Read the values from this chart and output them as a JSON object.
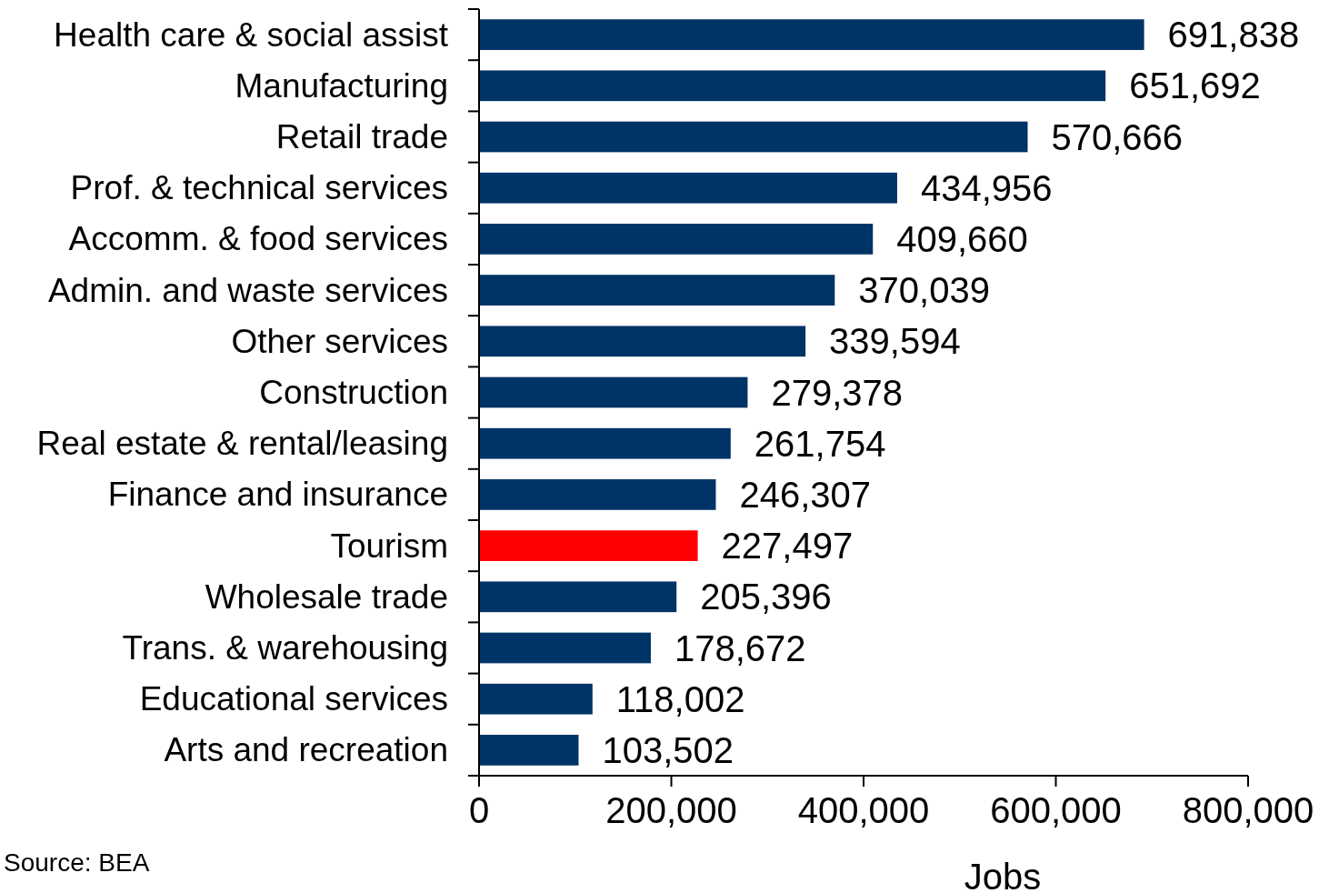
{
  "chart_data": {
    "type": "bar",
    "orientation": "horizontal",
    "categories": [
      "Health care & social assist",
      "Manufacturing",
      "Retail trade",
      "Prof. & technical services",
      "Accomm. & food services",
      "Admin. and waste services",
      "Other services",
      "Construction",
      "Real estate & rental/leasing",
      "Finance and insurance",
      "Tourism",
      "Wholesale trade",
      "Trans. & warehousing",
      "Educational services",
      "Arts and recreation"
    ],
    "values": [
      691838,
      651692,
      570666,
      434956,
      409660,
      370039,
      339594,
      279378,
      261754,
      246307,
      227497,
      205396,
      178672,
      118002,
      103502
    ],
    "colors": [
      "#003366",
      "#003366",
      "#003366",
      "#003366",
      "#003366",
      "#003366",
      "#003366",
      "#003366",
      "#003366",
      "#003366",
      "#ff0000",
      "#003366",
      "#003366",
      "#003366",
      "#003366"
    ],
    "xlim": [
      0,
      800000
    ],
    "xticks": [
      0,
      {
        "value": 200000,
        "label": "200,000"
      },
      {
        "value": 400000,
        "label": "400,000"
      },
      {
        "value": 600000,
        "label": "600,000"
      },
      {
        "value": 800000,
        "label": "800,000"
      }
    ],
    "value_labels": [
      "691,838",
      "651,692",
      "570,666",
      "434,956",
      "409,660",
      "370,039",
      "339,594",
      "279,378",
      "261,754",
      "246,307",
      "227,497",
      "205,396",
      "178,672",
      "118,002",
      "103,502"
    ],
    "xlabel": "Jobs",
    "grid": false,
    "annotations": [
      "Source: BEA"
    ]
  }
}
